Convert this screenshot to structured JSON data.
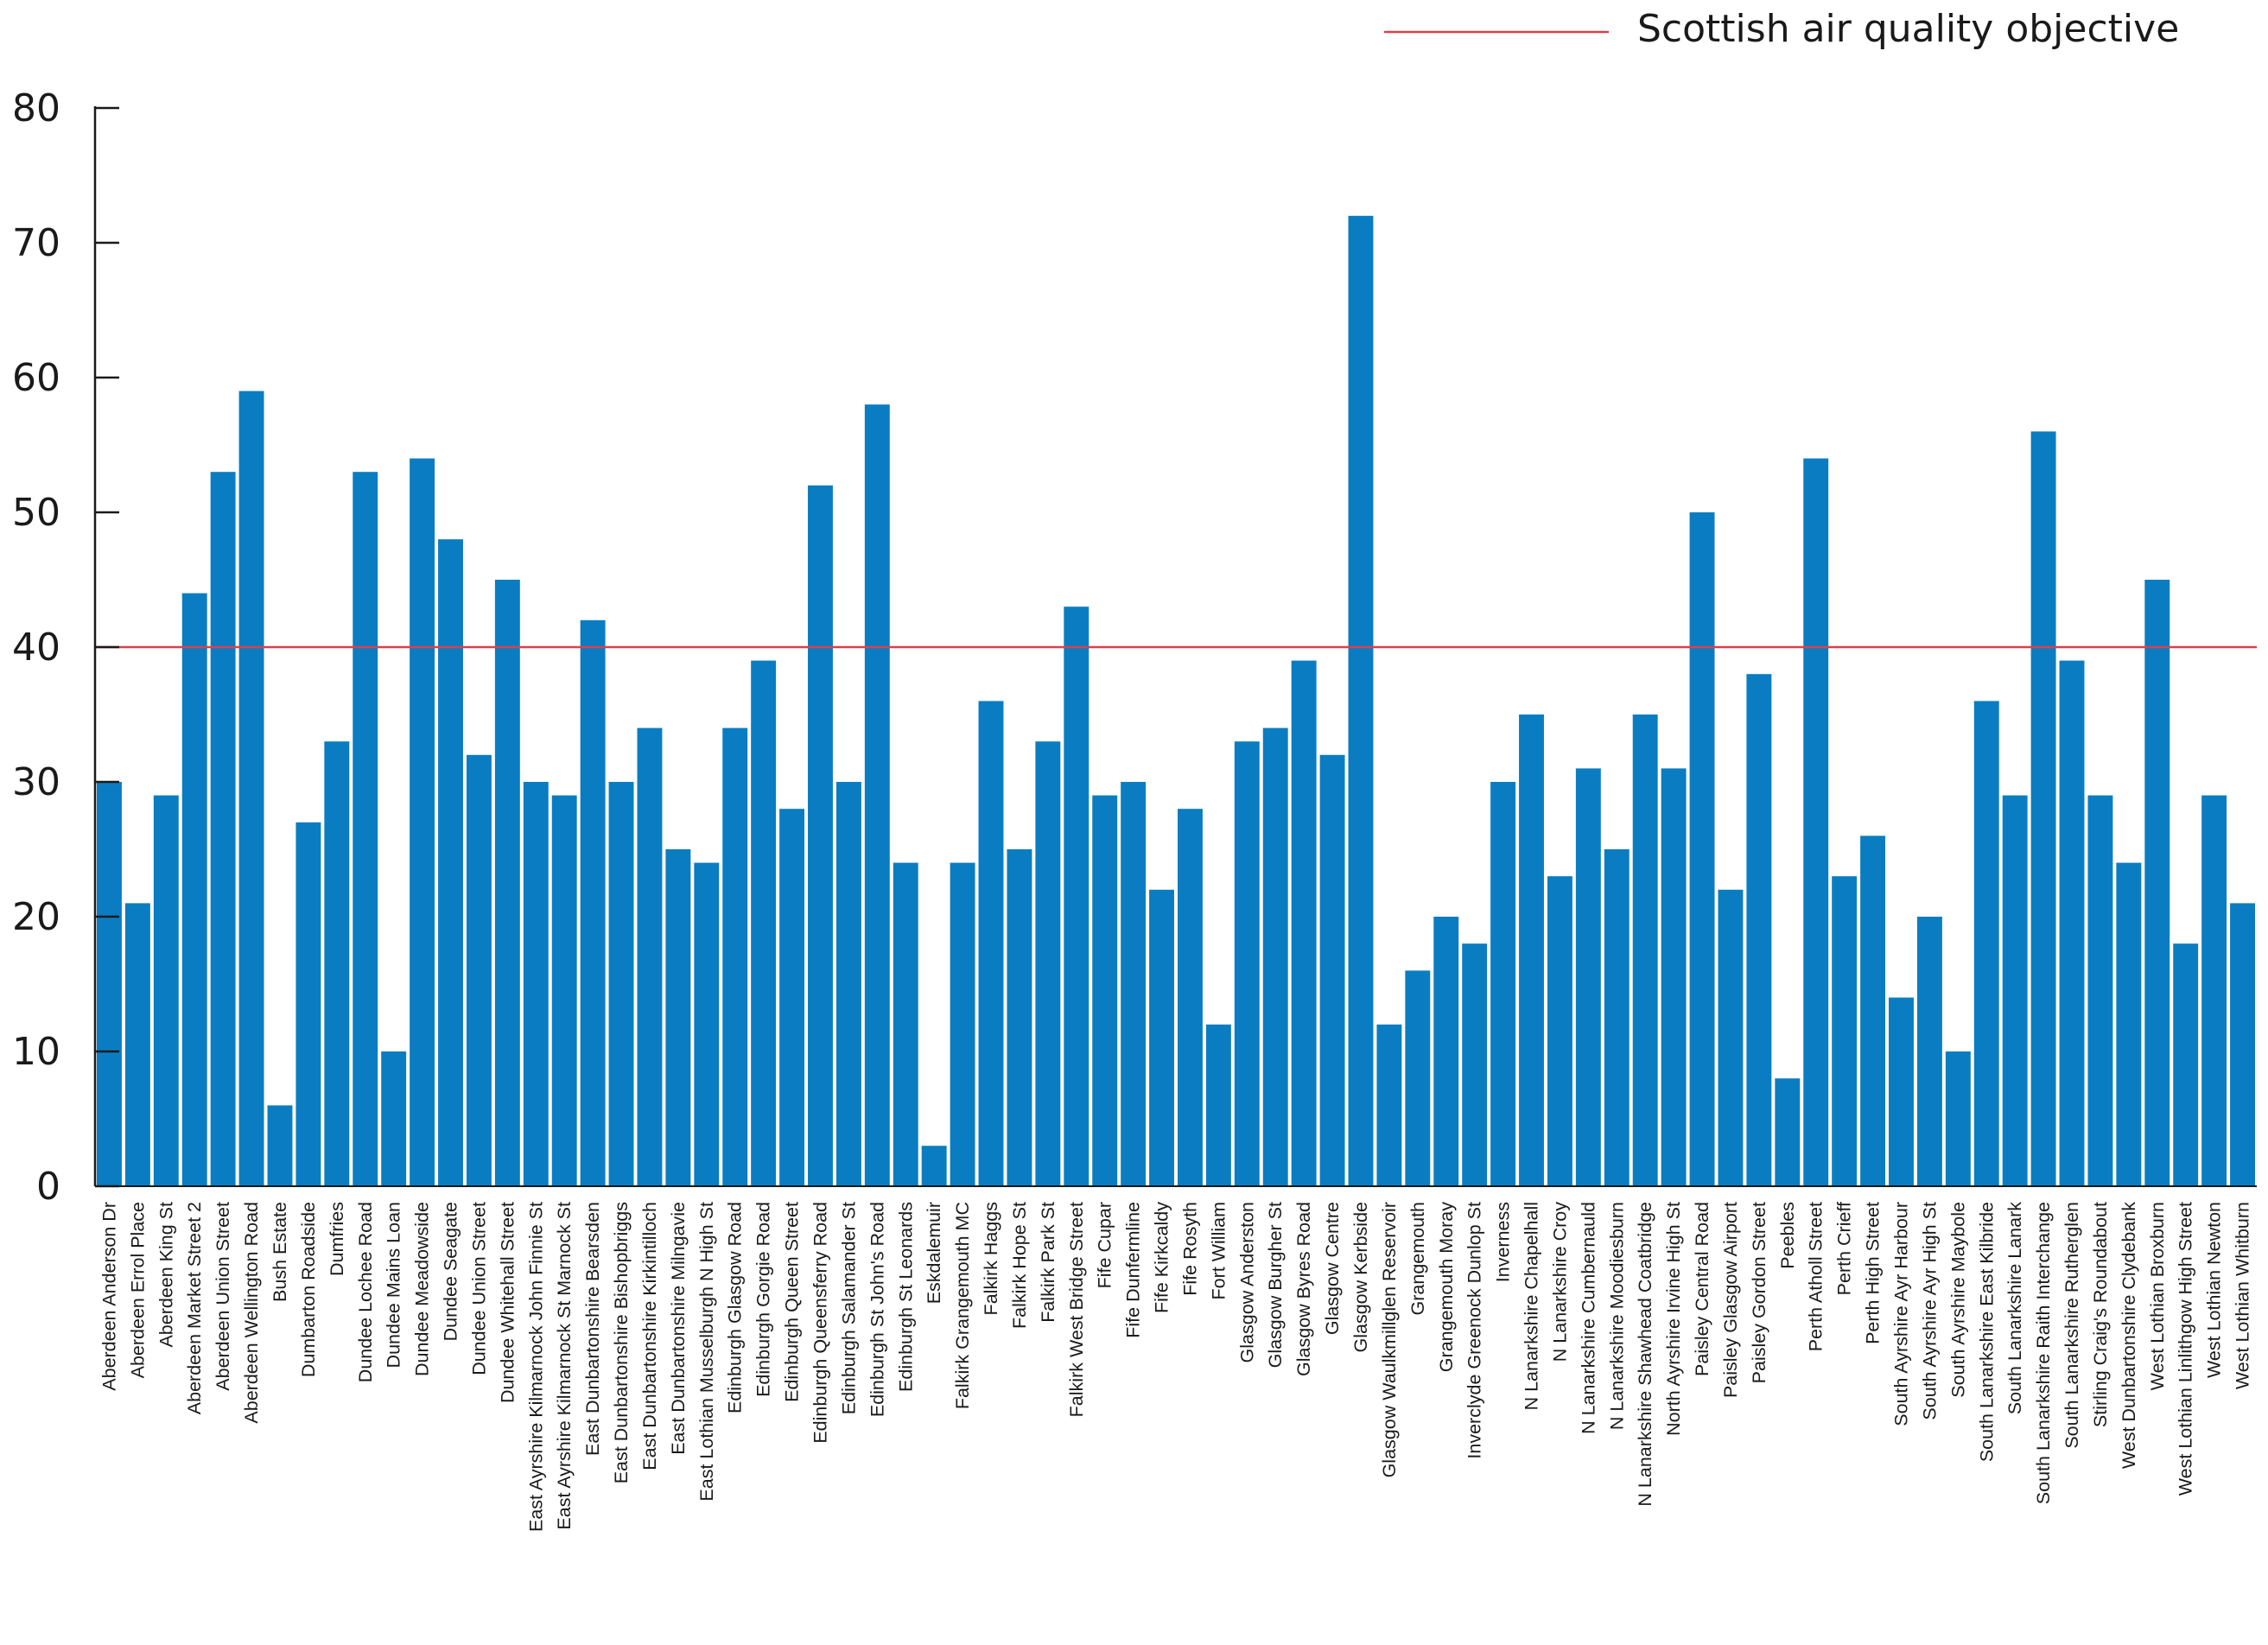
{
  "chart_data": {
    "type": "bar",
    "title": "",
    "xlabel": "",
    "ylabel": "",
    "ylim": [
      0,
      80
    ],
    "yticks": [
      0,
      10,
      20,
      30,
      40,
      50,
      60,
      70,
      80
    ],
    "grid": false,
    "bar_color": "#0a7dc2",
    "categories": [
      "Aberdeen Anderson Dr",
      "Aberdeen Errol Place",
      "Aberdeen King St",
      "Aberdeen Market Street 2",
      "Aberdeen Union Street",
      "Aberdeen Wellington Road",
      "Bush Estate",
      "Dumbarton Roadside",
      "Dumfries",
      "Dundee Lochee Road",
      "Dundee Mains Loan",
      "Dundee Meadowside",
      "Dundee Seagate",
      "Dundee Union Street",
      "Dundee Whitehall Street",
      "East Ayrshire Kilmarnock John Finnie St",
      "East Ayrshire Kilmarnock St Marnock St",
      "East Dunbartonshire Bearsden",
      "East Dunbartonshire Bishopbriggs",
      "East Dunbartonshire Kirkintilloch",
      "East Dunbartonshire Milngavie",
      "East Lothian Musselburgh N High St",
      "Edinburgh Glasgow Road",
      "Edinburgh Gorgie Road",
      "Edinburgh Queen Street",
      "Edinburgh Queensferry Road",
      "Edinburgh Salamander St",
      "Edinburgh St John's Road",
      "Edinburgh St Leonards",
      "Eskdalemuir",
      "Falkirk Grangemouth MC",
      "Falkirk Haggs",
      "Falkirk Hope St",
      "Falkirk Park St",
      "Falkirk West Bridge Street",
      "Fife Cupar",
      "Fife Dunfermline",
      "Fife Kirkcaldy",
      "Fife Rosyth",
      "Fort William",
      "Glasgow Anderston",
      "Glasgow Burgher St",
      "Glasgow Byres Road",
      "Glasgow Centre",
      "Glasgow Kerbside",
      "Glasgow Waulkmillglen Reservoir",
      "Grangemouth",
      "Grangemouth Moray",
      "Inverclyde Greenock Dunlop St",
      "Inverness",
      "N Lanarkshire Chapelhall",
      "N Lanarkshire Croy",
      "N Lanarkshire Cumbernauld",
      "N Lanarkshire Moodiesburn",
      "N Lanarkshire Shawhead Coatbridge",
      "North Ayrshire Irvine High St",
      "Paisley Central Road",
      "Paisley Glasgow Airport",
      "Paisley Gordon Street",
      "Peebles",
      "Perth Atholl Street",
      "Perth Crieff",
      "Perth High Street",
      "South Ayrshire Ayr Harbour",
      "South Ayrshire Ayr High St",
      "South Ayrshire Maybole",
      "South Lanarkshire East Kilbride",
      "South Lanarkshire Lanark",
      "South Lanarkshire Raith Interchange",
      "South Lanarkshire Rutherglen",
      "Stirling Craig's Roundabout",
      "West Dunbartonshire Clydebank",
      "West Lothian Broxburn",
      "West Lothian Linlithgow High Street",
      "West Lothian Newton",
      "West Lothian Whitburn"
    ],
    "values": [
      30,
      21,
      29,
      44,
      53,
      59,
      6,
      27,
      33,
      53,
      10,
      54,
      48,
      32,
      45,
      30,
      29,
      42,
      30,
      34,
      25,
      24,
      34,
      39,
      28,
      52,
      30,
      58,
      24,
      3,
      24,
      36,
      25,
      33,
      43,
      29,
      30,
      22,
      28,
      12,
      33,
      34,
      39,
      32,
      72,
      12,
      16,
      20,
      18,
      30,
      35,
      23,
      31,
      25,
      35,
      31,
      50,
      22,
      38,
      8,
      54,
      23,
      26,
      14,
      20,
      10,
      36,
      29,
      56,
      39,
      29,
      24,
      45,
      18,
      29,
      21
    ],
    "reference_line": {
      "value": 40,
      "label": "Scottish air quality objective",
      "color": "#d9414b"
    },
    "legend": {
      "position": "top-right",
      "entries": [
        "Scottish air quality objective"
      ]
    }
  }
}
